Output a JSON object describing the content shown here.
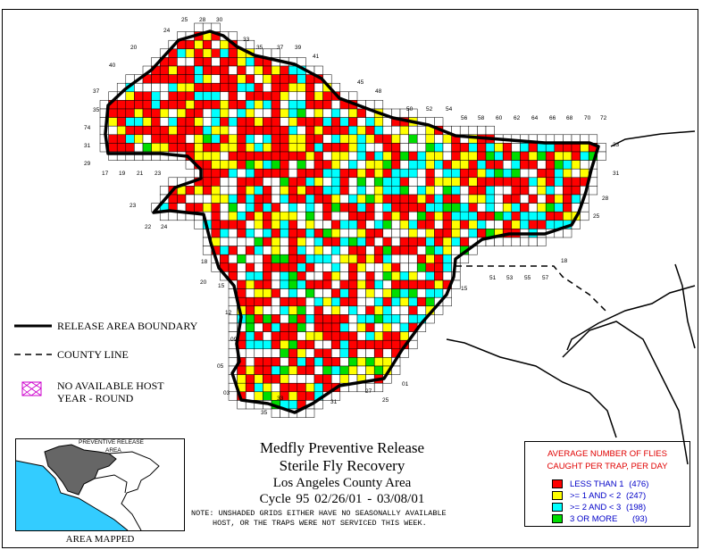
{
  "map": {
    "title_line1": "Medfly Preventive Release",
    "title_line2": "Sterile Fly Recovery",
    "title_line3": "Los Angeles County Area",
    "title_line4": "Cycle 95     02/26/01 - 03/08/01",
    "note_line1": "NOTE: UNSHADED GRIDS EITHER HAVE NO SEASONALLY AVAILABLE",
    "note_line2": "HOST, OR THE TRAPS WERE NOT SERVICED THIS WEEK."
  },
  "legend": {
    "release_boundary": "RELEASE AREA BOUNDARY",
    "county_line": "COUNTY LINE",
    "no_host_line1": "NO AVAILABLE HOST",
    "no_host_line2": "YEAR - ROUND"
  },
  "flies_legend": {
    "header_line1": "AVERAGE NUMBER OF FLIES",
    "header_line2": "CAUGHT PER TRAP, PER DAY",
    "classes": [
      {
        "label": "LESS THAN 1",
        "count": "(476)",
        "color": "#ff0000"
      },
      {
        "label": ">= 1 AND < 2",
        "count": "(247)",
        "color": "#ffff00"
      },
      {
        "label": ">= 2 AND < 3",
        "count": "(198)",
        "color": "#00ffff"
      },
      {
        "label": "3 OR MORE",
        "count": "(93)",
        "color": "#00dd00"
      }
    ]
  },
  "inset": {
    "label_line1": "PREVENTIVE RELEASE",
    "label_line2": "AREA",
    "caption": "AREA MAPPED",
    "ocean_color": "#33ccff",
    "area_color": "#666666"
  },
  "grid_labels": [
    "25",
    "28",
    "30",
    "24",
    "33",
    "35",
    "37",
    "39",
    "20",
    "41",
    "40",
    "45",
    "37",
    "48",
    "35",
    "50",
    "52",
    "54",
    "56",
    "58",
    "60",
    "62",
    "64",
    "66",
    "68",
    "70",
    "72",
    "74",
    "33",
    "31",
    "29",
    "17",
    "19",
    "21",
    "23",
    "31",
    "28",
    "25",
    "23",
    "22",
    "24",
    "18",
    "20",
    "18",
    "51",
    "53",
    "55",
    "57",
    "15",
    "15",
    "12",
    "09",
    "05",
    "03",
    "35",
    "33",
    "31",
    "27",
    "25",
    "01"
  ]
}
